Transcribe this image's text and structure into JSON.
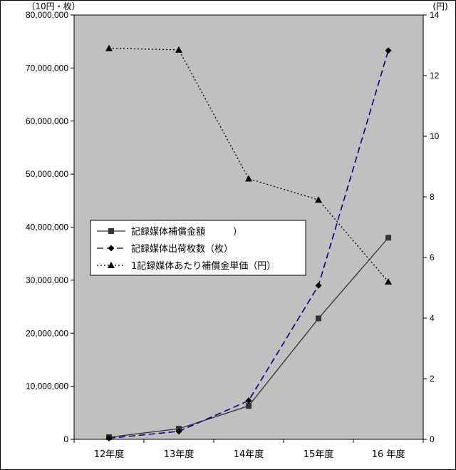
{
  "chart_data": {
    "type": "line",
    "categories": [
      "12年度",
      "13年度",
      "14年度",
      "15年度",
      "16 年度"
    ],
    "left_axis": {
      "unit": "（10円・枚）",
      "ylim": [
        0,
        80000000
      ],
      "ticks": [
        "0",
        "10,000,000",
        "20,000,000",
        "30,000,000",
        "40,000,000",
        "50,000,000",
        "60,000,000",
        "70,000,000",
        "80,000,000"
      ]
    },
    "right_axis": {
      "unit": "(円)",
      "ylim": [
        0,
        14
      ],
      "ticks": [
        "0",
        "2",
        "4",
        "6",
        "8",
        "10",
        "12",
        "14"
      ]
    },
    "series": [
      {
        "name": "記録媒体補償金額　　　）",
        "axis": "left",
        "style": "solid",
        "marker": "square",
        "color": "#333333",
        "values": [
          400000,
          2000000,
          6300000,
          22800000,
          38000000
        ]
      },
      {
        "name": "記録媒体出荷枚数（枚）",
        "axis": "left",
        "style": "dashed",
        "marker": "diamond",
        "color": "#000080",
        "values": [
          200000,
          1500000,
          7300000,
          29000000,
          73300000
        ]
      },
      {
        "name": "1記録媒体あたり補償金単価（円）",
        "axis": "right",
        "style": "dotted",
        "marker": "triangle",
        "color": "#000000",
        "values": [
          12.9,
          12.85,
          8.6,
          7.9,
          5.2
        ]
      }
    ],
    "plot_background": "#c0c0c0",
    "grid": false,
    "legend_position": "center-left"
  }
}
